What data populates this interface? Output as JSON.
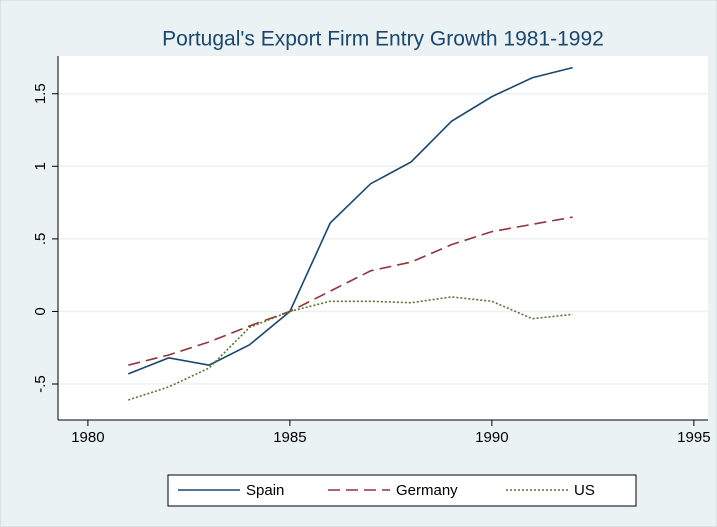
{
  "chart_data": {
    "type": "line",
    "title": "Portugal's  Export Firm Entry Growth 1981-1992",
    "x": [
      1981,
      1982,
      1983,
      1984,
      1985,
      1986,
      1987,
      1988,
      1989,
      1990,
      1991,
      1992
    ],
    "series": [
      {
        "name": "Spain",
        "color": "#1a476f",
        "style": "solid",
        "values": [
          -0.43,
          -0.32,
          -0.37,
          -0.23,
          0,
          0.61,
          0.88,
          1.03,
          1.31,
          1.48,
          1.61,
          1.68
        ]
      },
      {
        "name": "Germany",
        "color": "#90353b",
        "style": "dashed",
        "values": [
          -0.37,
          -0.3,
          -0.21,
          -0.1,
          0,
          0.14,
          0.28,
          0.34,
          0.46,
          0.55,
          0.6,
          0.65
        ]
      },
      {
        "name": "US",
        "color": "#55752f",
        "style": "dotted",
        "values": [
          -0.61,
          -0.52,
          -0.39,
          -0.11,
          0,
          0.07,
          0.07,
          0.06,
          0.1,
          0.07,
          -0.05,
          -0.02
        ]
      }
    ],
    "xlim": [
      1979.26,
      1995.35
    ],
    "xticks": [
      1980,
      1985,
      1990,
      1995
    ],
    "ylim": [
      -0.748,
      1.76
    ],
    "yticks": [
      {
        "value": -0.5,
        "label": "-.5"
      },
      0,
      {
        "value": 0.5,
        "label": ".5"
      },
      1,
      1.5
    ],
    "grid": true,
    "legend": "bottom"
  }
}
